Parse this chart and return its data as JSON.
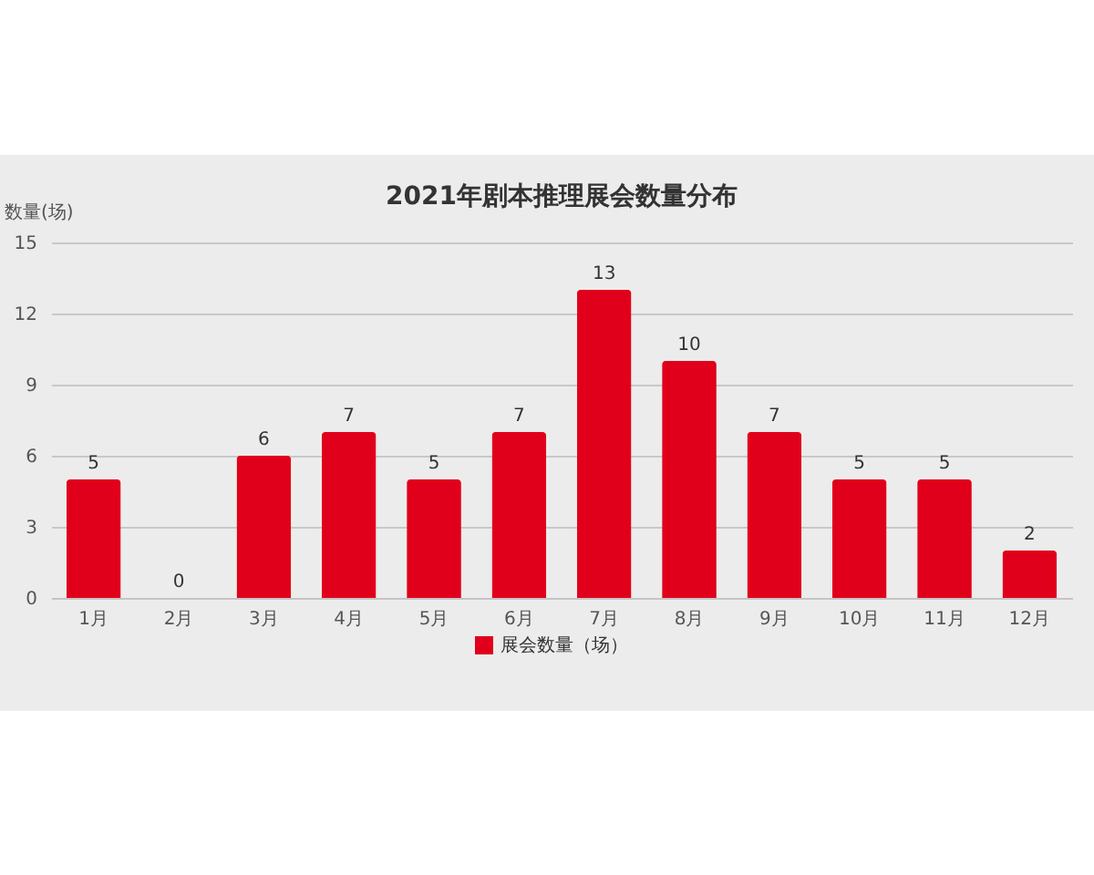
{
  "chart_data": {
    "type": "bar",
    "title": "2021年剧本推理展会数量分布",
    "ylabel": "数量(场)",
    "categories": [
      "1月",
      "2月",
      "3月",
      "4月",
      "5月",
      "6月",
      "7月",
      "8月",
      "9月",
      "10月",
      "11月",
      "12月"
    ],
    "series": [
      {
        "name": "展会数量（场）",
        "color": "#e1001b",
        "values": [
          5,
          0,
          6,
          7,
          5,
          7,
          13,
          10,
          7,
          5,
          5,
          2
        ]
      }
    ],
    "ylim": [
      0,
      15
    ],
    "yticks": [
      0,
      3,
      6,
      9,
      12,
      15
    ],
    "grid": "y",
    "legend": "bottom",
    "data_labels": true
  }
}
